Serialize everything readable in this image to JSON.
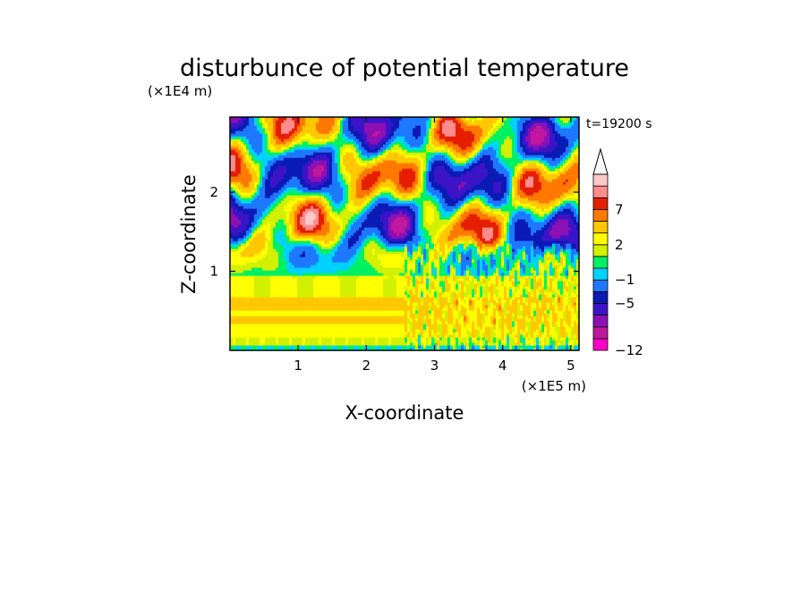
{
  "chart_data": {
    "type": "heatmap",
    "title": "disturbunce of potential temperature",
    "time_label": "t=19200 s",
    "xlabel": "X-coordinate",
    "ylabel": "Z-coordinate",
    "x_unit": "(×1E5 m)",
    "y_unit": "(×1E4 m)",
    "xlim": [
      0,
      5.12
    ],
    "ylim": [
      0,
      2.95
    ],
    "x_ticks": [
      1,
      2,
      3,
      4,
      5
    ],
    "y_ticks": [
      1,
      2
    ],
    "colorbar": {
      "extend": "max",
      "levels": [
        -12,
        -11,
        -9,
        -7,
        -5,
        -3,
        -1,
        0,
        1,
        2,
        3,
        5,
        7,
        9,
        11
      ],
      "colors": [
        "#ff00c8",
        "#c0189c",
        "#8c10b4",
        "#3c14c8",
        "#0a1ab4",
        "#1e78ff",
        "#00d2ff",
        "#00f064",
        "#d2f000",
        "#ffff00",
        "#ffc800",
        "#ff7800",
        "#e61e00",
        "#ff8c8c",
        "#ffc8c8"
      ],
      "tick_labels": [
        {
          "value": -12,
          "label": "−12"
        },
        {
          "value": -5,
          "label": "−5"
        },
        {
          "value": -1,
          "label": "−1"
        },
        {
          "value": 2,
          "label": "2"
        },
        {
          "value": 7,
          "label": "7"
        }
      ]
    }
  }
}
